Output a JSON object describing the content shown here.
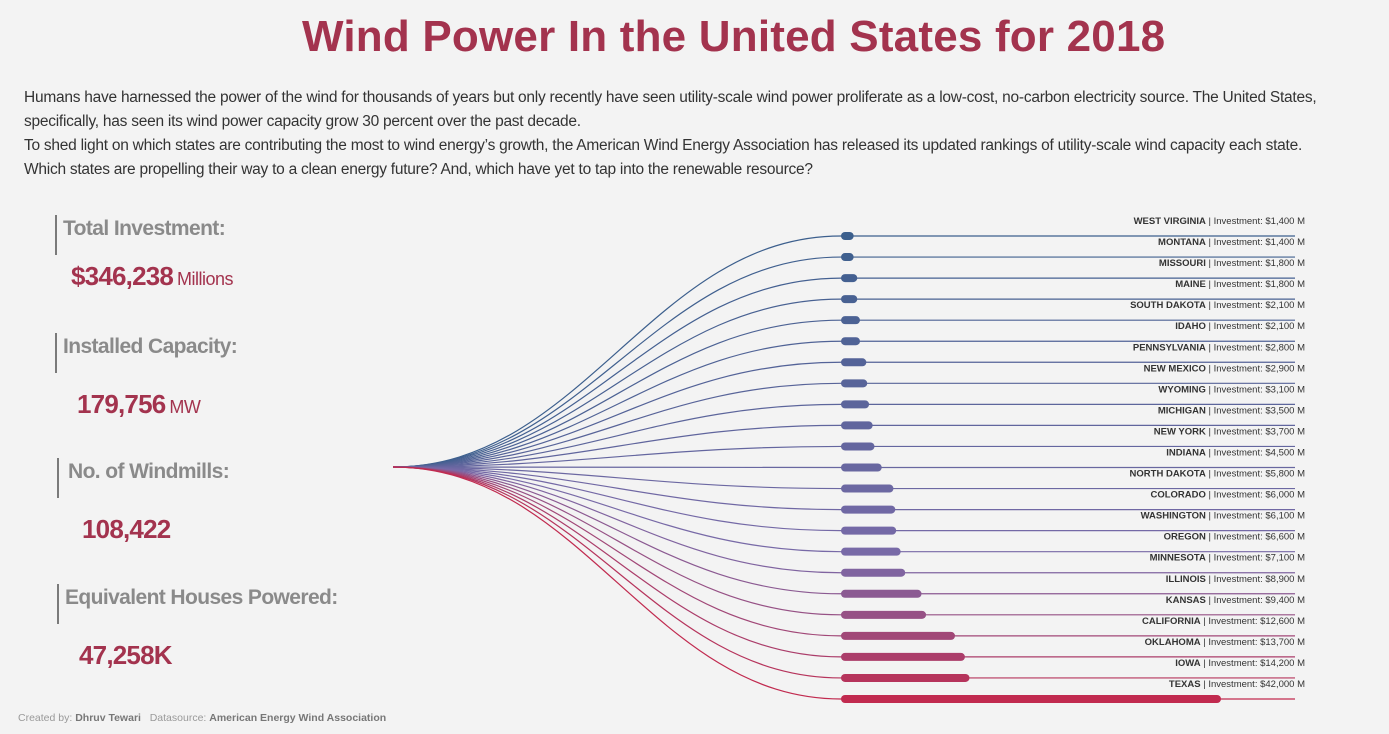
{
  "title": "Wind Power In the United States for 2018",
  "intro": [
    "Humans have harnessed the power of the wind for thousands of years but only recently have seen utility-scale wind power proliferate as a low-cost, no-carbon electricity source.  The United States, specifically, has seen its wind power capacity grow 30 percent over the past decade.",
    "To shed light on which states are contributing the most to wind energy’s growth, the American Wind Energy Association has released its updated rankings of utility-scale wind capacity each state.",
    "Which states are propelling their way to a clean energy future? And, which have yet to tap into the renewable resource?"
  ],
  "kpis": {
    "investment": {
      "label": "Total Investment:",
      "value": "$346,238",
      "unit": "Millions"
    },
    "capacity": {
      "label": "Installed Capacity:",
      "value": "179,756",
      "unit": "MW"
    },
    "windmills": {
      "label": "No. of Windmills:",
      "value": "108,422",
      "unit": ""
    },
    "houses": {
      "label": "Equivalent Houses Powered:",
      "value": "47,258K",
      "unit": ""
    }
  },
  "footer": {
    "created_prefix": "Created by:",
    "author": "Dhruv Tewari",
    "source_prefix": "Datasource:",
    "source": "American Energy Wind Association"
  },
  "colors": {
    "low": "#3c5f8d",
    "mid": "#7a6aa8",
    "high": "#c12a4f",
    "title": "#a3334e"
  },
  "chart_data": {
    "type": "bar",
    "value_label": "Investment",
    "unit": "M",
    "categories": [
      "WEST VIRGINIA",
      "MONTANA",
      "MISSOURI",
      "MAINE",
      "SOUTH DAKOTA",
      "IDAHO",
      "PENNSYLVANIA",
      "NEW MEXICO",
      "WYOMING",
      "MICHIGAN",
      "NEW YORK",
      "INDIANA",
      "NORTH DAKOTA",
      "COLORADO",
      "WASHINGTON",
      "OREGON",
      "MINNESOTA",
      "ILLINOIS",
      "KANSAS",
      "CALIFORNIA",
      "OKLAHOMA",
      "IOWA",
      "TEXAS"
    ],
    "values": [
      1400,
      1400,
      1800,
      1800,
      2100,
      2100,
      2800,
      2900,
      3100,
      3500,
      3700,
      4500,
      5800,
      6000,
      6100,
      6600,
      7100,
      8900,
      9400,
      12600,
      13700,
      14200,
      42000
    ],
    "labels": [
      "$1,400 M",
      "$1,400 M",
      "$1,800 M",
      "$1,800 M",
      "$2,100 M",
      "$2,100 M",
      "$2,800 M",
      "$2,900 M",
      "$3,100 M",
      "$3,500 M",
      "$3,700 M",
      "$4,500 M",
      "$5,800 M",
      "$6,000 M",
      "$6,100 M",
      "$6,600 M",
      "$7,100 M",
      "$8,900 M",
      "$9,400 M",
      "$12,600 M",
      "$13,700 M",
      "$14,200 M",
      "$42,000 M"
    ]
  }
}
